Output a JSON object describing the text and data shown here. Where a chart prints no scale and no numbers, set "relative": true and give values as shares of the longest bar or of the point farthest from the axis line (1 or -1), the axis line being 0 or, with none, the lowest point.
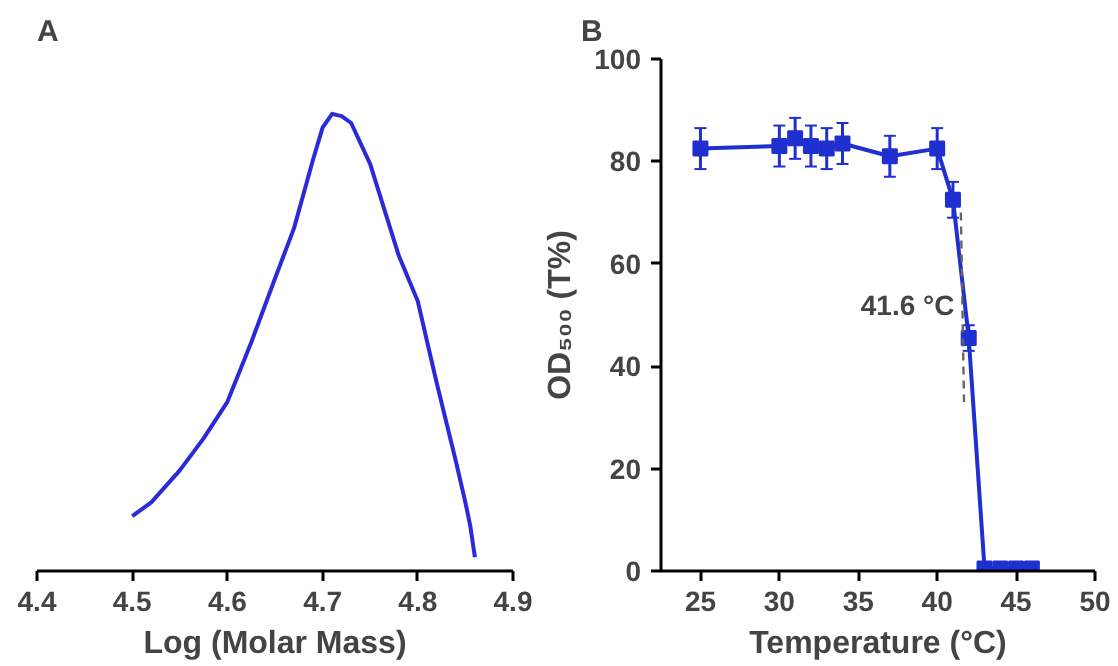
{
  "chart_data": [
    {
      "type": "line",
      "title": "A",
      "xlabel": "Log (Molar Mass)",
      "relative": true,
      "xlim": [
        4.4,
        4.9
      ],
      "xticks": [
        4.4,
        4.5,
        4.6,
        4.7,
        4.8,
        4.9
      ],
      "grid": false,
      "series": [
        {
          "color": "#2a2ad8",
          "x": [
            4.5,
            4.52,
            4.55,
            4.575,
            4.6,
            4.625,
            4.65,
            4.67,
            4.69,
            4.7,
            4.71,
            4.72,
            4.73,
            4.75,
            4.765,
            4.78,
            4.8,
            4.81,
            4.82,
            4.84,
            4.85,
            4.855,
            4.86
          ],
          "values": [
            0.12,
            0.15,
            0.22,
            0.29,
            0.37,
            0.5,
            0.64,
            0.75,
            0.9,
            0.97,
            1.0,
            0.995,
            0.98,
            0.89,
            0.79,
            0.69,
            0.59,
            0.5,
            0.41,
            0.24,
            0.15,
            0.1,
            0.03
          ]
        }
      ]
    },
    {
      "type": "line",
      "title": "B",
      "xlabel": "Temperature (°C)",
      "ylabel": "OD₅₀₀ (T%)",
      "xlim": [
        22.5,
        50
      ],
      "xticks": [
        25,
        30,
        35,
        40,
        45,
        50
      ],
      "ylim": [
        0,
        100
      ],
      "yticks": [
        0,
        20,
        40,
        60,
        80,
        100
      ],
      "grid": false,
      "marker": "square",
      "series": [
        {
          "color": "#1f2fd0",
          "x": [
            25,
            30,
            31,
            32,
            33,
            34,
            37,
            40,
            41,
            42,
            43,
            44,
            45,
            46
          ],
          "values": [
            82.5,
            83,
            84.5,
            83,
            82.5,
            83.5,
            81,
            82.5,
            72.5,
            45.5,
            0.5,
            0.5,
            0.5,
            0.5
          ],
          "errors": [
            4,
            4,
            4,
            4,
            4,
            4,
            4,
            4,
            3.5,
            2.5,
            null,
            null,
            null,
            null
          ]
        },
        {
          "type": "line",
          "color": "#666666",
          "line_style": "dashed",
          "marker": "none",
          "x": [
            41.5,
            41.7
          ],
          "values": [
            70,
            33
          ]
        }
      ],
      "annotations": [
        {
          "text": "41.6 °C",
          "x": 41.6,
          "y": 52
        }
      ]
    }
  ]
}
